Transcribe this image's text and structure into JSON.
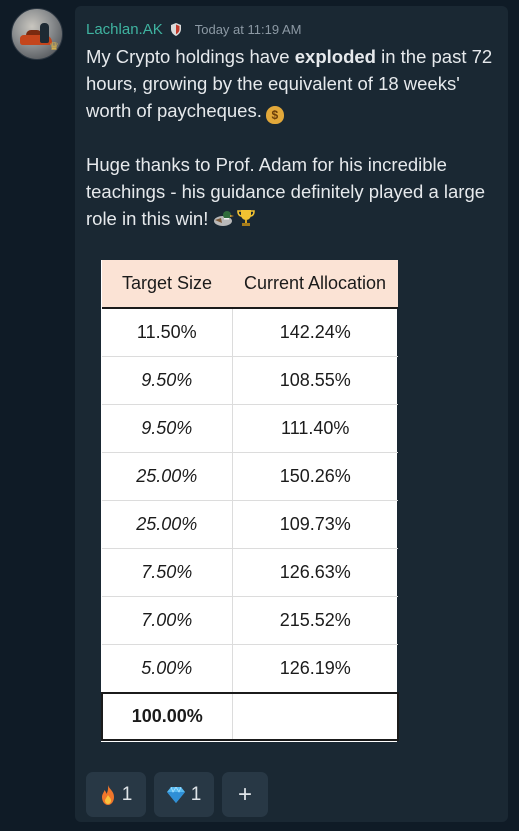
{
  "message": {
    "author": "Lachlan.AK",
    "timestamp": "Today at 11:19 AM",
    "p1_before": "My Crypto holdings have ",
    "p1_bold": "exploded",
    "p1_after": " in the past 72 hours, growing by the equivalent of 18 weeks' worth of paycheques.",
    "p2": "Huge thanks to Prof. Adam for his incredible teachings - his guidance definitely played a large role in this win!",
    "emoji_1": "money-bag-icon",
    "emoji_2": "duck-icon",
    "emoji_3": "trophy-icon"
  },
  "table": {
    "headers": [
      "Target Size",
      "Current Allocation"
    ],
    "rows": [
      [
        "11.50%",
        "142.24%"
      ],
      [
        "9.50%",
        "108.55%"
      ],
      [
        "9.50%",
        "111.40%"
      ],
      [
        "25.00%",
        "150.26%"
      ],
      [
        "25.00%",
        "109.73%"
      ],
      [
        "7.50%",
        "126.63%"
      ],
      [
        "7.00%",
        "215.52%"
      ],
      [
        "5.00%",
        "126.19%"
      ]
    ],
    "total": [
      "100.00%",
      ""
    ]
  },
  "reactions": [
    {
      "icon": "fire-icon",
      "count": "1"
    },
    {
      "icon": "gem-icon",
      "count": "1"
    },
    {
      "icon": "plus-icon",
      "label": "+"
    }
  ],
  "colors": {
    "background": "#0f1b26",
    "card": "#1a2833",
    "username": "#3fb3a0",
    "header_fill": "#fbe3d5"
  }
}
